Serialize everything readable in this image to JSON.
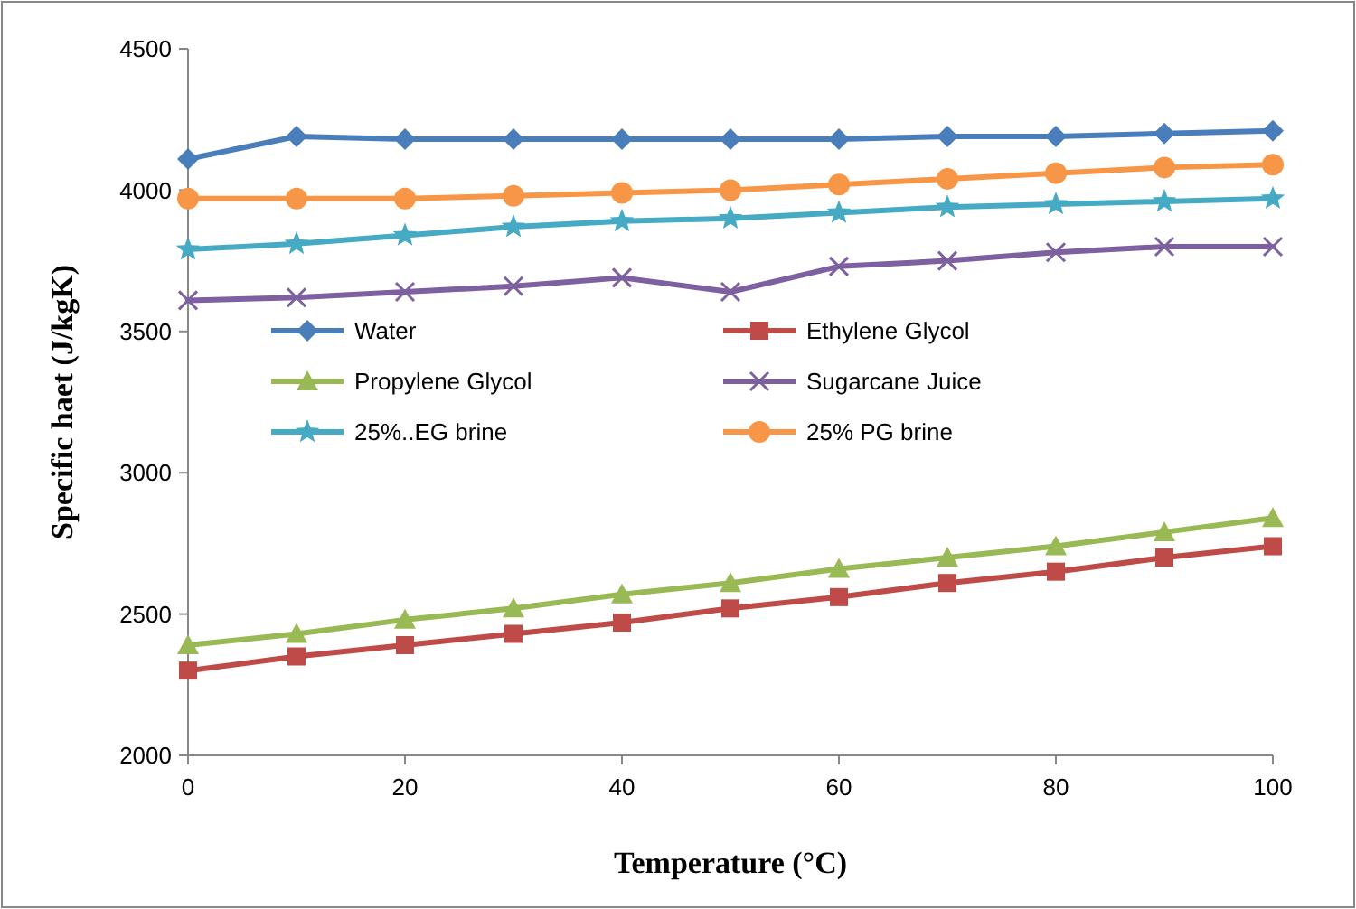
{
  "chart_data": {
    "type": "line",
    "xlabel": "Temperature (°C)",
    "ylabel": "Specific haet (J/kgK)",
    "x": [
      0,
      10,
      20,
      30,
      40,
      50,
      60,
      70,
      80,
      90,
      100
    ],
    "xlim": [
      0,
      100
    ],
    "xticks": [
      0,
      20,
      40,
      60,
      80,
      100
    ],
    "ylim": [
      2000,
      4500
    ],
    "yticks": [
      2000,
      2500,
      3000,
      3500,
      4000,
      4500
    ],
    "grid": false,
    "legend": "left",
    "series": [
      {
        "name": "Water",
        "color": "#4a7ebb",
        "marker": "diamond",
        "values": [
          4110,
          4190,
          4180,
          4180,
          4180,
          4180,
          4180,
          4190,
          4190,
          4200,
          4210
        ]
      },
      {
        "name": "Ethylene Glycol",
        "color": "#be4b48",
        "marker": "square",
        "values": [
          2300,
          2350,
          2390,
          2430,
          2470,
          2520,
          2560,
          2610,
          2650,
          2700,
          2740
        ]
      },
      {
        "name": "Propylene Glycol",
        "color": "#98b954",
        "marker": "triangle",
        "values": [
          2390,
          2430,
          2480,
          2520,
          2570,
          2610,
          2660,
          2700,
          2740,
          2790,
          2840
        ]
      },
      {
        "name": "Sugarcane Juice",
        "color": "#7d60a0",
        "marker": "cross",
        "values": [
          3610,
          3620,
          3640,
          3660,
          3690,
          3640,
          3730,
          3750,
          3780,
          3800,
          3800
        ]
      },
      {
        "name": "25%..EG brine",
        "color": "#46aac5",
        "marker": "star",
        "values": [
          3790,
          3810,
          3840,
          3870,
          3890,
          3900,
          3920,
          3940,
          3950,
          3960,
          3970
        ]
      },
      {
        "name": "25% PG brine",
        "color": "#f79646",
        "marker": "circle",
        "values": [
          3970,
          3970,
          3970,
          3980,
          3990,
          4000,
          4020,
          4040,
          4060,
          4080,
          4090
        ]
      }
    ]
  }
}
